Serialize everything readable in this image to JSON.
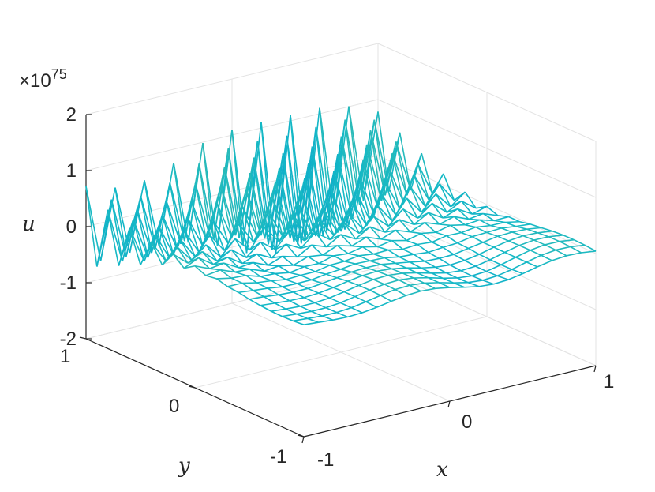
{
  "chart_data": {
    "type": "mesh",
    "title": "",
    "xlabel": "x",
    "ylabel": "y",
    "zlabel": "u",
    "exponent_label": "×10",
    "exponent_value": "75",
    "xlim": [
      -1,
      1
    ],
    "ylim": [
      -1,
      1
    ],
    "zlim": [
      -2,
      2
    ],
    "x_ticks": [
      "-1",
      "0",
      "1"
    ],
    "y_ticks": [
      "-1",
      "0",
      "1"
    ],
    "z_ticks": [
      "-2",
      "-1",
      "0",
      "1",
      "2"
    ],
    "grid": "on",
    "colormap": "parula",
    "colors": {
      "low": "#352a87",
      "mid": "#14b9c6",
      "high": "#f9fb0e"
    },
    "mesh_resolution": 20,
    "surface_description": "Oscillating numerical solution; spikes of ±2e75 along the y = 1 edge, decaying toward y = -1"
  }
}
